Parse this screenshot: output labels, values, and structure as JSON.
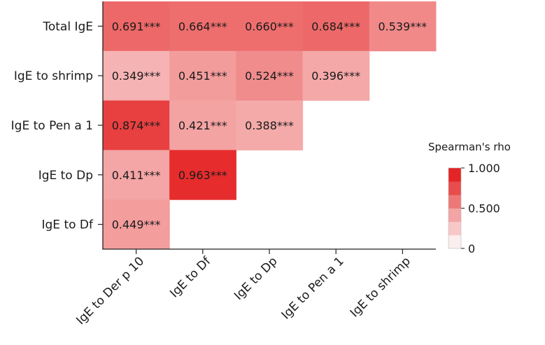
{
  "chart_data": {
    "type": "heatmap",
    "title": "",
    "xlabel": "",
    "ylabel": "",
    "rows": [
      "Total IgE",
      "IgE to shrimp",
      "IgE to Pen a 1",
      "IgE to Dp",
      "IgE to Df"
    ],
    "columns": [
      "IgE to Der p 10",
      "IgE to Df",
      "IgE to Dp",
      "IgE to Pen a 1",
      "IgE to shrimp"
    ],
    "values": [
      [
        0.691,
        0.664,
        0.66,
        0.684,
        0.539
      ],
      [
        0.349,
        0.451,
        0.524,
        0.396,
        null
      ],
      [
        0.874,
        0.421,
        0.388,
        null,
        null
      ],
      [
        0.411,
        0.963,
        null,
        null,
        null
      ],
      [
        0.449,
        null,
        null,
        null,
        null
      ]
    ],
    "labels": [
      [
        "0.691***",
        "0.664***",
        "0.660***",
        "0.684***",
        "0.539***"
      ],
      [
        "0.349***",
        "0.451***",
        "0.524***",
        "0.396***",
        null
      ],
      [
        "0.874***",
        "0.421***",
        "0.388***",
        null,
        null
      ],
      [
        "0.411***",
        "0.963***",
        null,
        null,
        null
      ],
      [
        "0.449***",
        null,
        null,
        null,
        null
      ]
    ],
    "legend": {
      "title": "Spearman's rho",
      "ticks": [
        {
          "value": 1.0,
          "label": "1.000"
        },
        {
          "value": 0.5,
          "label": "0.500"
        },
        {
          "value": 0.0,
          "label": "0"
        }
      ],
      "bins": 6,
      "placement": "right"
    },
    "colors": {
      "low": "#ffffff",
      "high": "#e52424",
      "bins": [
        "#fbeeee",
        "#f8c8c8",
        "#f3a4a4",
        "#ee7878",
        "#e94c4c",
        "#e42525"
      ]
    }
  }
}
